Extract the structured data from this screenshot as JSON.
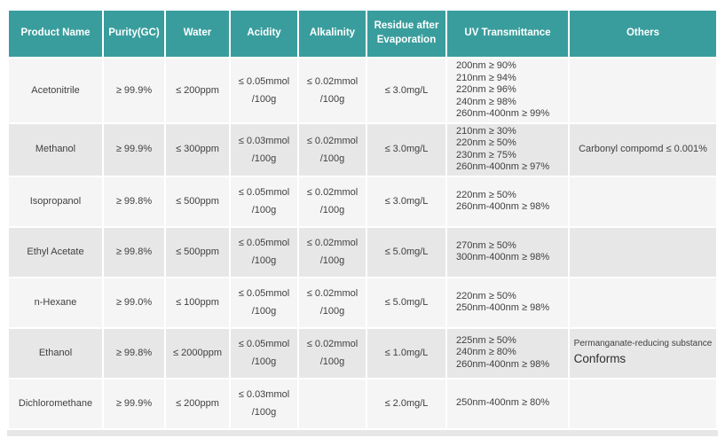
{
  "colors": {
    "header_bg": "#3A9D9D",
    "header_text": "#ffffff",
    "row_light": "#f5f5f5",
    "row_dark": "#e7e7e7",
    "body_text": "#404040"
  },
  "table": {
    "headers": [
      "Product Name",
      "Purity(GC)",
      "Water",
      "Acidity",
      "Alkalinity",
      "Residue after Evaporation",
      "UV Transmittance",
      "Others"
    ],
    "rows": [
      {
        "product": "Acetonitrile",
        "purity": "≥ 99.9%",
        "water": "≤ 200ppm",
        "acidity": [
          "≤ 0.05mmol",
          "/100g"
        ],
        "alkalinity": [
          "≤ 0.02mmol",
          "/100g"
        ],
        "residue": "≤ 3.0mg/L",
        "uv": [
          "200nm ≥ 90%",
          "210nm ≥ 94%",
          "220nm ≥ 96%",
          "240nm ≥ 98%",
          "260nm-400nm ≥ 99%"
        ],
        "others": {
          "note": "",
          "text": ""
        }
      },
      {
        "product": "Methanol",
        "purity": "≥ 99.9%",
        "water": "≤ 300ppm",
        "acidity": [
          "≤ 0.03mmol",
          "/100g"
        ],
        "alkalinity": [
          "≤ 0.02mmol",
          "/100g"
        ],
        "residue": "≤ 3.0mg/L",
        "uv": [
          "210nm ≥ 30%",
          "220nm ≥ 50%",
          "230nm ≥ 75%",
          "260nm-400nm ≥ 97%"
        ],
        "others": {
          "note": "",
          "text": "Carbonyl compomd ≤ 0.001%"
        }
      },
      {
        "product": "Isopropanol",
        "purity": "≥ 99.8%",
        "water": "≤ 500ppm",
        "acidity": [
          "≤ 0.05mmol",
          "/100g"
        ],
        "alkalinity": [
          "≤ 0.02mmol",
          "/100g"
        ],
        "residue": "≤ 3.0mg/L",
        "uv": [
          "220nm ≥ 50%",
          "260nm-400nm ≥ 98%"
        ],
        "others": {
          "note": "",
          "text": ""
        }
      },
      {
        "product": "Ethyl Acetate",
        "purity": "≥ 99.8%",
        "water": "≤ 500ppm",
        "acidity": [
          "≤ 0.05mmol",
          "/100g"
        ],
        "alkalinity": [
          "≤ 0.02mmol",
          "/100g"
        ],
        "residue": "≤ 5.0mg/L",
        "uv": [
          "270nm ≥ 50%",
          "300nm-400nm ≥ 98%"
        ],
        "others": {
          "note": "",
          "text": ""
        }
      },
      {
        "product": "n-Hexane",
        "purity": "≥ 99.0%",
        "water": "≤ 100ppm",
        "acidity": [
          "≤ 0.05mmol",
          "/100g"
        ],
        "alkalinity": [
          "≤ 0.02mmol",
          "/100g"
        ],
        "residue": "≤ 5.0mg/L",
        "uv": [
          "220nm ≥ 50%",
          "250nm-400nm ≥ 98%"
        ],
        "others": {
          "note": "",
          "text": ""
        }
      },
      {
        "product": "Ethanol",
        "purity": "≥ 99.8%",
        "water": "≤ 2000ppm",
        "acidity": [
          "≤ 0.05mmol",
          "/100g"
        ],
        "alkalinity": [
          "≤ 0.02mmol",
          "/100g"
        ],
        "residue": "≤ 1.0mg/L",
        "uv": [
          "225nm ≥ 50%",
          "240nm ≥ 80%",
          "260nm-400nm ≥ 98%"
        ],
        "others": {
          "note": "Permanganate-reducing substance",
          "text": "Conforms"
        }
      },
      {
        "product": "Dichloromethane",
        "purity": "≥ 99.9%",
        "water": "≤ 200ppm",
        "acidity": [
          "≤ 0.03mmol",
          "/100g"
        ],
        "alkalinity": [],
        "residue": "≤ 2.0mg/L",
        "uv": [
          "250nm-400nm ≥ 80%"
        ],
        "others": {
          "note": "",
          "text": ""
        }
      }
    ]
  }
}
